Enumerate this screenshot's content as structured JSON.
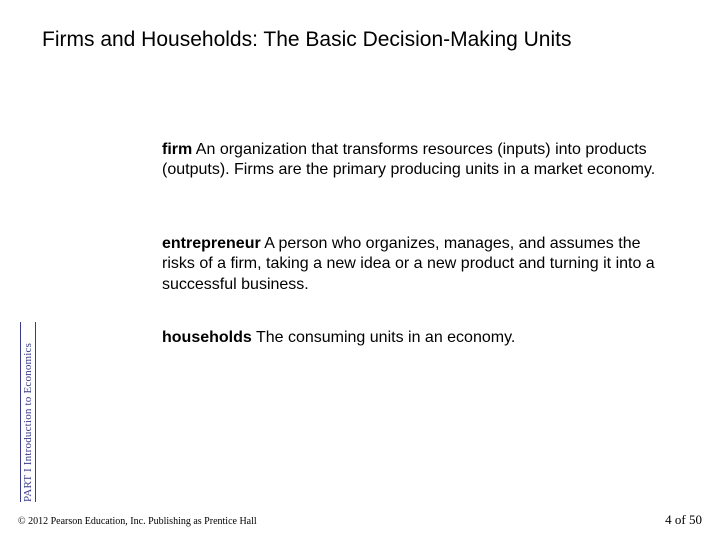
{
  "title": "Firms and Households: The Basic Decision-Making Units",
  "definitions": [
    {
      "term": "firm",
      "text": "  An organization that transforms resources (inputs) into products (outputs). Firms are the primary producing units in a market economy."
    },
    {
      "term": "entrepreneur",
      "text": "  A person who organizes, manages, and assumes the risks of a firm, taking a new idea or a new product and turning it into a successful business."
    },
    {
      "term": "households",
      "text": "  The consuming units in an economy."
    }
  ],
  "sidebar": "PART I Introduction to Economics",
  "copyright": "© 2012 Pearson Education, Inc. Publishing as Prentice Hall",
  "page": "4 of 50",
  "colors": {
    "background": "#ffffff",
    "text": "#000000",
    "sidebar": "#3a3a8a"
  }
}
